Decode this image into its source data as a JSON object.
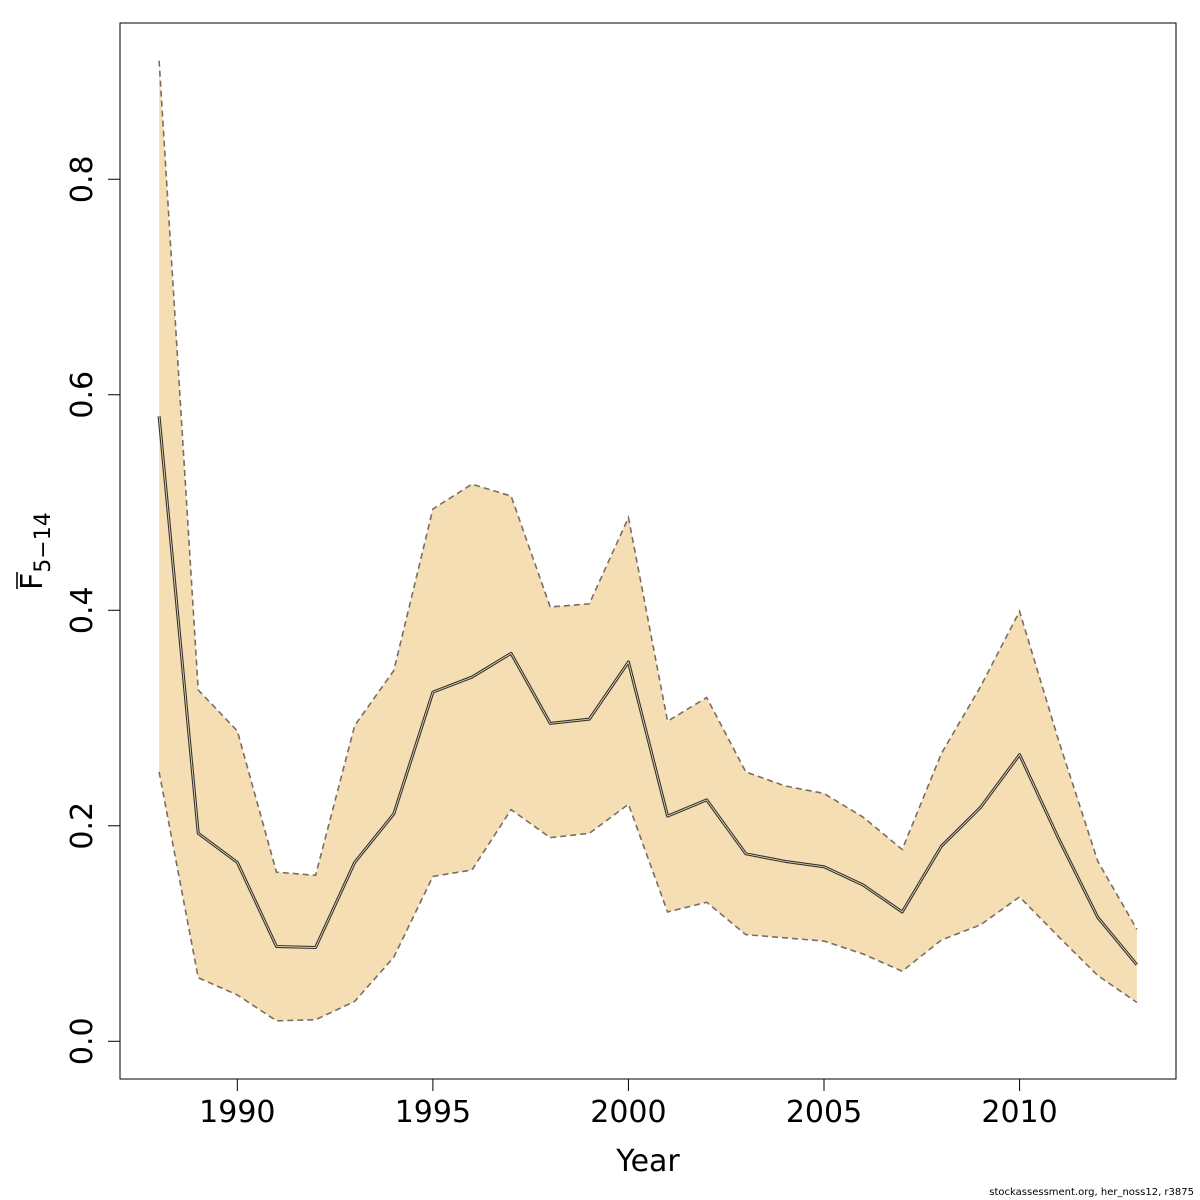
{
  "chart_data": {
    "type": "line",
    "title": "",
    "xlabel": "Year",
    "ylabel": {
      "base": "F",
      "subscript": "5−14",
      "overline": true
    },
    "xlim": [
      1987,
      2014
    ],
    "ylim": [
      -0.035,
      0.945
    ],
    "x_ticks": [
      1990,
      1995,
      2000,
      2005,
      2010
    ],
    "y_ticks": [
      0.0,
      0.2,
      0.4,
      0.6,
      0.8
    ],
    "y_tick_labels": [
      "0.0",
      "0.2",
      "0.4",
      "0.6",
      "0.8"
    ],
    "grid": false,
    "colors": {
      "band": "#f5deb3",
      "bound_line": "#7a6e62",
      "estimate_line": "#333333"
    },
    "x": [
      1988,
      1989,
      1990,
      1991,
      1992,
      1993,
      1994,
      1995,
      1996,
      1997,
      1998,
      1999,
      2000,
      2001,
      2002,
      2003,
      2004,
      2005,
      2006,
      2007,
      2008,
      2009,
      2010,
      2011,
      2012,
      2013
    ],
    "series": [
      {
        "role": "estimate",
        "values": [
          0.58,
          0.193,
          0.166,
          0.088,
          0.087,
          0.166,
          0.211,
          0.324,
          0.338,
          0.36,
          0.295,
          0.299,
          0.352,
          0.209,
          0.224,
          0.174,
          0.167,
          0.162,
          0.145,
          0.12,
          0.181,
          0.217,
          0.266,
          0.188,
          0.115,
          0.071
        ]
      },
      {
        "role": "upper",
        "values": [
          0.91,
          0.326,
          0.288,
          0.157,
          0.154,
          0.293,
          0.344,
          0.494,
          0.517,
          0.506,
          0.403,
          0.406,
          0.486,
          0.297,
          0.319,
          0.25,
          0.237,
          0.23,
          0.208,
          0.178,
          0.267,
          0.329,
          0.399,
          0.279,
          0.167,
          0.104
        ]
      },
      {
        "role": "lower",
        "values": [
          0.25,
          0.059,
          0.043,
          0.019,
          0.02,
          0.037,
          0.078,
          0.153,
          0.159,
          0.215,
          0.189,
          0.193,
          0.22,
          0.12,
          0.129,
          0.099,
          0.096,
          0.093,
          0.081,
          0.065,
          0.094,
          0.108,
          0.134,
          0.097,
          0.061,
          0.036
        ]
      }
    ]
  },
  "footer": {
    "credit": "stockassessment.org, her_noss12, r3875"
  }
}
